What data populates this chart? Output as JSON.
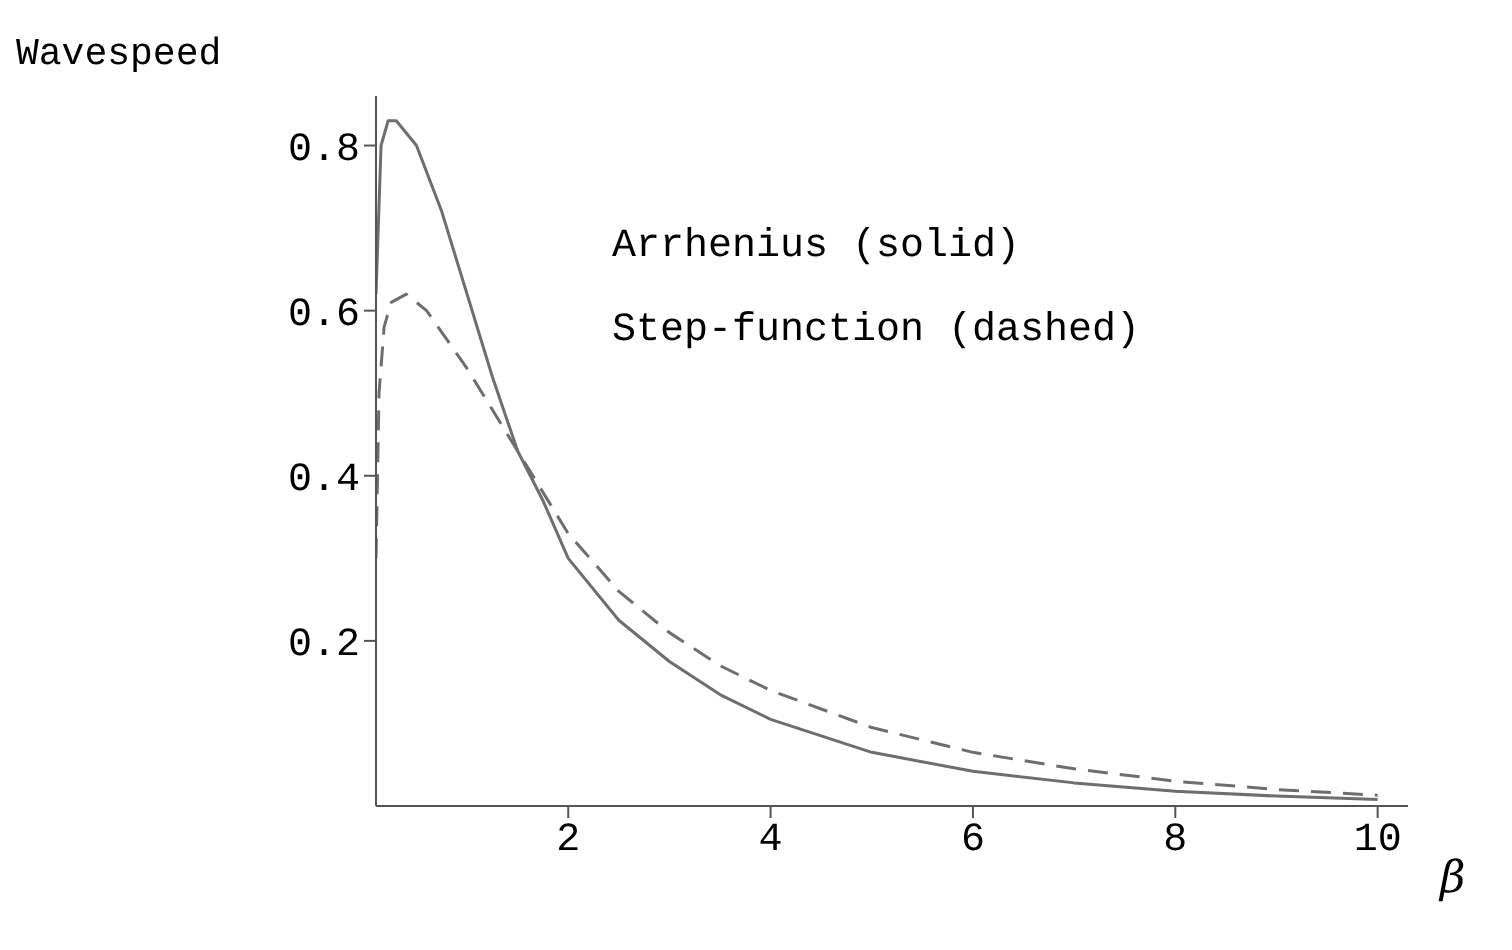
{
  "chart_data": {
    "type": "line",
    "xlabel": "β",
    "ylabel": "Wavespeed",
    "annotations": [
      "Arrhenius (solid)",
      "Step-function (dashed)"
    ],
    "xlim": [
      0.1,
      10.3
    ],
    "xticks": [
      2,
      4,
      6,
      8,
      10
    ],
    "ylim": [
      0,
      0.86
    ],
    "yticks": [
      0.2,
      0.4,
      0.6,
      0.8
    ],
    "grid": false,
    "legend": false,
    "marker": "none",
    "series": [
      {
        "color": "#6e6e6e",
        "line_style": "solid",
        "x": [
          0.1,
          0.15,
          0.22,
          0.3,
          0.5,
          0.75,
          1.0,
          1.25,
          1.5,
          1.75,
          2,
          2.5,
          3,
          3.5,
          4,
          5,
          6,
          7,
          8,
          9,
          10
        ],
        "values": [
          0.62,
          0.8,
          0.83,
          0.83,
          0.8,
          0.72,
          0.62,
          0.52,
          0.43,
          0.37,
          0.3,
          0.225,
          0.175,
          0.135,
          0.105,
          0.065,
          0.042,
          0.028,
          0.018,
          0.012,
          0.008
        ]
      },
      {
        "color": "#6e6e6e",
        "line_style": "dashed",
        "x": [
          0.1,
          0.13,
          0.18,
          0.25,
          0.4,
          0.6,
          1.0,
          1.5,
          1.75,
          2,
          2.5,
          3,
          3.5,
          4,
          5,
          6,
          7,
          8,
          9,
          10
        ],
        "values": [
          0.3,
          0.5,
          0.58,
          0.61,
          0.62,
          0.6,
          0.53,
          0.43,
          0.38,
          0.33,
          0.26,
          0.21,
          0.17,
          0.14,
          0.095,
          0.065,
          0.045,
          0.03,
          0.02,
          0.013
        ]
      }
    ]
  }
}
